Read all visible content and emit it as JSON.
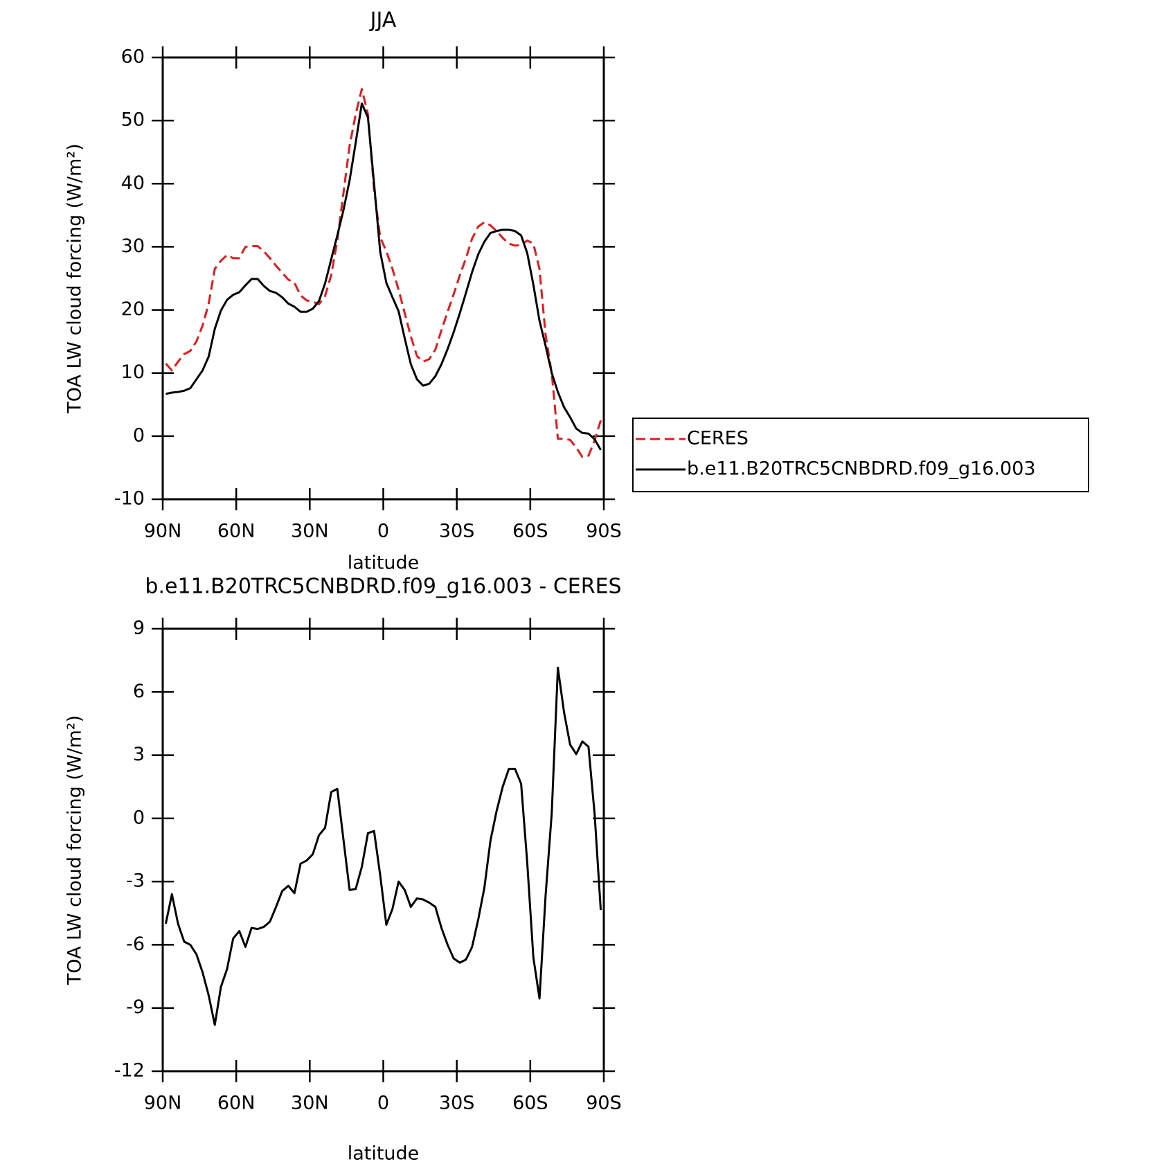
{
  "chart_data": [
    {
      "type": "line",
      "title": "JJA",
      "xlabel": "latitude",
      "ylabel": "TOA LW cloud forcing (W/m²)",
      "x": [
        88.75,
        86.25,
        83.75,
        81.25,
        78.75,
        76.25,
        73.75,
        71.25,
        68.75,
        66.25,
        63.75,
        61.25,
        58.75,
        56.25,
        53.75,
        51.25,
        48.75,
        46.25,
        43.75,
        41.25,
        38.75,
        36.25,
        33.75,
        31.25,
        28.75,
        26.25,
        23.75,
        21.25,
        18.75,
        16.25,
        13.75,
        11.25,
        8.75,
        6.25,
        3.75,
        1.25,
        -1.25,
        -3.75,
        -6.25,
        -8.75,
        -11.25,
        -13.75,
        -16.25,
        -18.75,
        -21.25,
        -23.75,
        -26.25,
        -28.75,
        -31.25,
        -33.75,
        -36.25,
        -38.75,
        -41.25,
        -43.75,
        -46.25,
        -48.75,
        -51.25,
        -53.75,
        -56.25,
        -58.75,
        -61.25,
        -63.75,
        -66.25,
        -68.75,
        -71.25,
        -73.75,
        -76.25,
        -78.75,
        -81.25,
        -83.75,
        -86.25,
        -88.75
      ],
      "series": [
        {
          "name": "CERES",
          "color": "#e41a1c",
          "line_style": "dashed",
          "values": [
            11.5,
            10.4,
            11.8,
            13.0,
            13.5,
            15.0,
            17.5,
            21.0,
            26.5,
            27.8,
            28.7,
            28.2,
            28.2,
            30.0,
            30.1,
            30.1,
            29.3,
            28.2,
            27.0,
            25.9,
            24.8,
            24.3,
            22.3,
            21.5,
            21.3,
            20.9,
            22.2,
            25.5,
            31.0,
            38.5,
            46.0,
            51.0,
            55.0,
            51.0,
            39.0,
            31.5,
            29.3,
            26.5,
            23.2,
            19.5,
            15.8,
            12.7,
            11.8,
            12.2,
            13.7,
            16.8,
            19.7,
            22.5,
            25.5,
            28.2,
            31.3,
            33.2,
            33.9,
            33.4,
            32.5,
            31.4,
            30.5,
            30.2,
            30.3,
            31.0,
            30.5,
            26.5,
            16.0,
            10.0,
            -0.4,
            -0.4,
            -0.6,
            -1.8,
            -3.3,
            -3.1,
            -0.7,
            2.5
          ]
        },
        {
          "name": "b.e11.B20TRC5CNBDRD.f09_g16.003",
          "color": "#000000",
          "line_style": "solid",
          "values": [
            6.7,
            6.9,
            7.0,
            7.2,
            7.6,
            9.0,
            10.4,
            12.6,
            17.0,
            19.9,
            21.6,
            22.4,
            22.8,
            23.9,
            24.9,
            24.9,
            23.8,
            23.0,
            22.7,
            22.0,
            21.0,
            20.5,
            19.7,
            19.7,
            20.2,
            21.4,
            24.2,
            28.0,
            31.8,
            35.8,
            40.5,
            46.5,
            52.7,
            50.5,
            40.0,
            29.2,
            24.3,
            22.0,
            19.8,
            15.5,
            11.4,
            9.0,
            8.0,
            8.3,
            9.5,
            11.4,
            13.8,
            16.5,
            19.5,
            22.7,
            26.0,
            28.8,
            30.8,
            32.2,
            32.5,
            32.7,
            32.7,
            32.5,
            31.8,
            29.0,
            24.0,
            18.3,
            14.3,
            10.0,
            7.0,
            4.6,
            3.0,
            1.2,
            0.5,
            0.4,
            -0.5,
            -2.2
          ]
        }
      ],
      "xlim": [
        90,
        -90
      ],
      "xticks": [
        {
          "value": 90,
          "label": "90N"
        },
        {
          "value": 60,
          "label": "60N"
        },
        {
          "value": 30,
          "label": "30N"
        },
        0,
        {
          "value": -30,
          "label": "30S"
        },
        {
          "value": -60,
          "label": "60S"
        },
        {
          "value": -90,
          "label": "90S"
        }
      ],
      "ylim": [
        -10,
        60
      ],
      "yticks": [
        -10,
        0,
        10,
        20,
        30,
        40,
        50,
        60
      ],
      "legend": "right"
    },
    {
      "type": "line",
      "title": "b.e11.B20TRC5CNBDRD.f09_g16.003 - CERES",
      "xlabel": "latitude",
      "ylabel": "TOA LW cloud forcing (W/m²)",
      "x": [
        88.75,
        86.25,
        83.75,
        81.25,
        78.75,
        76.25,
        73.75,
        71.25,
        68.75,
        66.25,
        63.75,
        61.25,
        58.75,
        56.25,
        53.75,
        51.25,
        48.75,
        46.25,
        43.75,
        41.25,
        38.75,
        36.25,
        33.75,
        31.25,
        28.75,
        26.25,
        23.75,
        21.25,
        18.75,
        16.25,
        13.75,
        11.25,
        8.75,
        6.25,
        3.75,
        1.25,
        -1.25,
        -3.75,
        -6.25,
        -8.75,
        -11.25,
        -13.75,
        -16.25,
        -18.75,
        -21.25,
        -23.75,
        -26.25,
        -28.75,
        -31.25,
        -33.75,
        -36.25,
        -38.75,
        -41.25,
        -43.75,
        -46.25,
        -48.75,
        -51.25,
        -53.75,
        -56.25,
        -58.75,
        -61.25,
        -63.75,
        -66.25,
        -68.75,
        -71.25,
        -73.75,
        -76.25,
        -78.75,
        -81.25,
        -83.75,
        -86.25,
        -88.75
      ],
      "series": [
        {
          "color": "#000000",
          "line_style": "solid",
          "values": [
            -5.0,
            -3.6,
            -5.0,
            -5.85,
            -6.0,
            -6.45,
            -7.3,
            -8.4,
            -9.8,
            -8.0,
            -7.15,
            -5.7,
            -5.35,
            -6.1,
            -5.2,
            -5.25,
            -5.15,
            -4.9,
            -4.2,
            -3.45,
            -3.2,
            -3.55,
            -2.15,
            -2.0,
            -1.7,
            -0.8,
            -0.45,
            1.25,
            1.4,
            -1.0,
            -3.4,
            -3.35,
            -2.3,
            -0.7,
            -0.6,
            -2.7,
            -5.05,
            -4.3,
            -3.0,
            -3.4,
            -4.2,
            -3.8,
            -3.85,
            -4.0,
            -4.2,
            -5.2,
            -6.0,
            -6.65,
            -6.85,
            -6.7,
            -6.1,
            -4.8,
            -3.3,
            -1.05,
            0.35,
            1.5,
            2.35,
            2.35,
            1.65,
            -2.1,
            -6.6,
            -8.55,
            -3.65,
            0.25,
            7.15,
            5.05,
            3.5,
            3.05,
            3.65,
            3.4,
            0.2,
            -4.35
          ]
        }
      ],
      "xlim": [
        90,
        -90
      ],
      "xticks": [
        {
          "value": 90,
          "label": "90N"
        },
        {
          "value": 60,
          "label": "60N"
        },
        {
          "value": 30,
          "label": "30N"
        },
        0,
        {
          "value": -30,
          "label": "30S"
        },
        {
          "value": -60,
          "label": "60S"
        },
        {
          "value": -90,
          "label": "90S"
        }
      ],
      "ylim": [
        -12,
        9
      ],
      "yticks": [
        -12,
        -9,
        -6,
        -3,
        0,
        3,
        6,
        9
      ]
    }
  ]
}
